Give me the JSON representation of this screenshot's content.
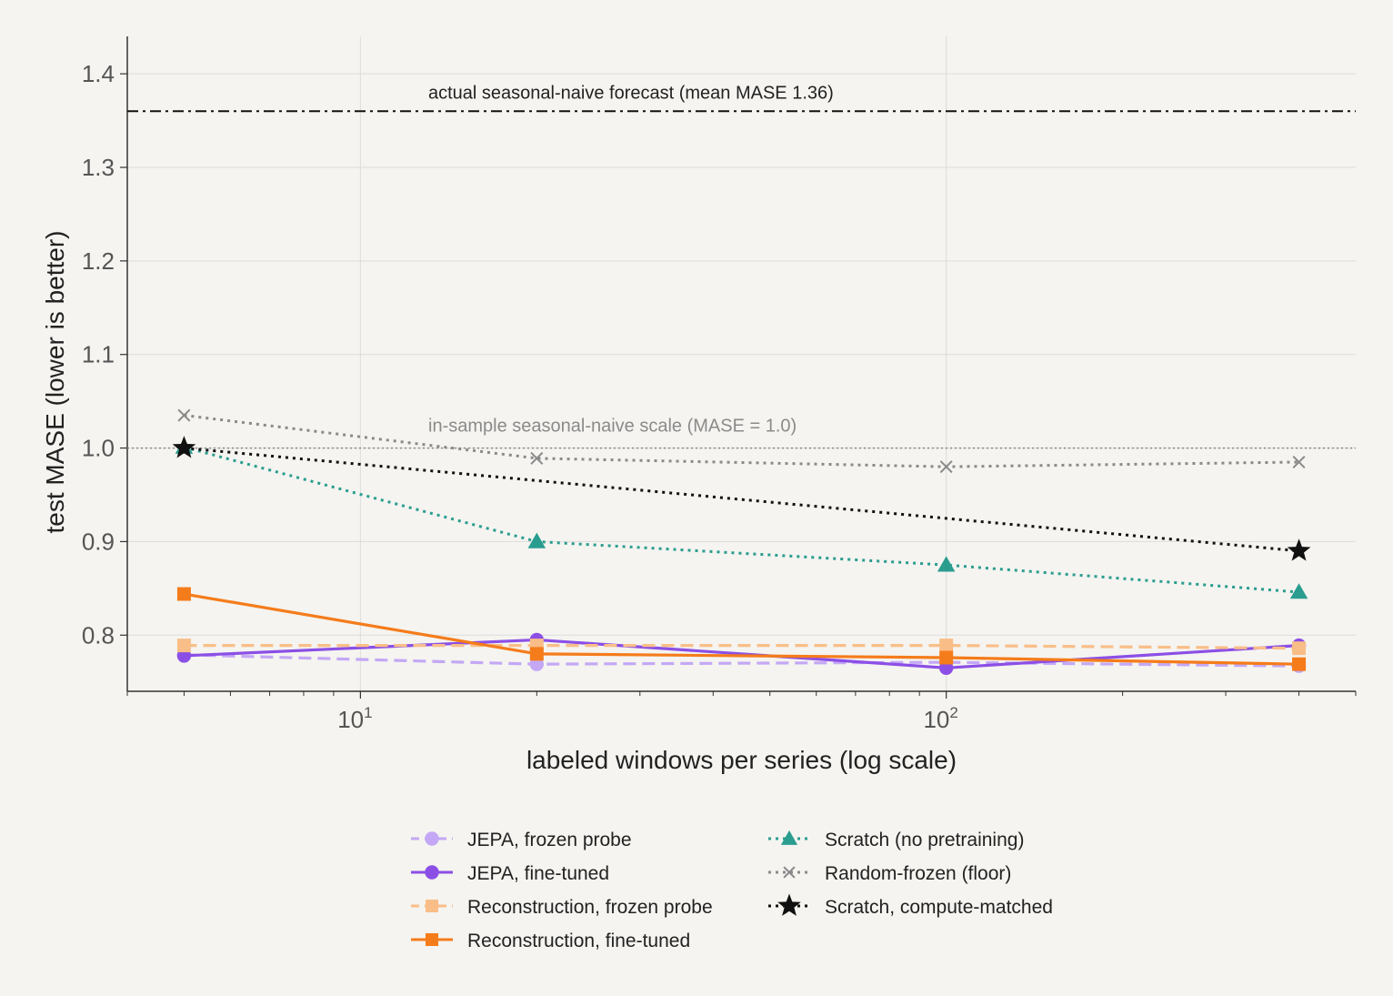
{
  "chart_data": {
    "type": "line",
    "xscale": "log",
    "xlabel": "labeled windows per series (log scale)",
    "ylabel": "test MASE (lower is better)",
    "xlim": [
      4,
      500
    ],
    "ylim": [
      0.74,
      1.44
    ],
    "x": [
      5,
      20,
      100,
      400
    ],
    "x_ticks": [
      {
        "value": 10,
        "base": "10",
        "exp": "1"
      },
      {
        "value": 100,
        "base": "10",
        "exp": "2"
      }
    ],
    "y_ticks": [
      "0.8",
      "0.9",
      "1.0",
      "1.1",
      "1.2",
      "1.3",
      "1.4"
    ],
    "grid": true,
    "legend_position": "bottom",
    "reference_lines": [
      {
        "y": 1.36,
        "label": "actual seasonal-naive forecast (mean MASE 1.36)",
        "style": "dashdot",
        "color": "#111111"
      },
      {
        "y": 1.0,
        "label": "in-sample seasonal-naive scale (MASE = 1.0)",
        "style": "dotted",
        "color": "#8a8a8a"
      }
    ],
    "series": [
      {
        "name": "JEPA, frozen probe",
        "values": [
          0.779,
          0.769,
          0.771,
          0.767
        ],
        "color": "#c4a8f5",
        "dash": "dashed",
        "marker": "circle"
      },
      {
        "name": "JEPA, fine-tuned",
        "values": [
          0.778,
          0.795,
          0.765,
          0.789
        ],
        "color": "#8b4fe6",
        "dash": "solid",
        "marker": "circle"
      },
      {
        "name": "Reconstruction, frozen probe",
        "values": [
          0.789,
          0.789,
          0.789,
          0.786
        ],
        "color": "#f9be88",
        "dash": "dashed",
        "marker": "square"
      },
      {
        "name": "Reconstruction, fine-tuned",
        "values": [
          0.844,
          0.78,
          0.776,
          0.769
        ],
        "color": "#f57c1b",
        "dash": "solid",
        "marker": "square"
      },
      {
        "name": "Scratch (no pretraining)",
        "values": [
          1.001,
          0.9,
          0.875,
          0.846
        ],
        "color": "#2a9d8f",
        "dash": "dotted",
        "marker": "triangle"
      },
      {
        "name": "Random-frozen (floor)",
        "values": [
          1.035,
          0.989,
          0.98,
          0.985
        ],
        "color": "#8a8a8a",
        "dash": "dotted",
        "marker": "x"
      },
      {
        "name": "Scratch, compute-matched",
        "values": [
          1.0,
          null,
          null,
          0.89
        ],
        "color": "#111111",
        "dash": "dotted",
        "marker": "star"
      }
    ]
  }
}
